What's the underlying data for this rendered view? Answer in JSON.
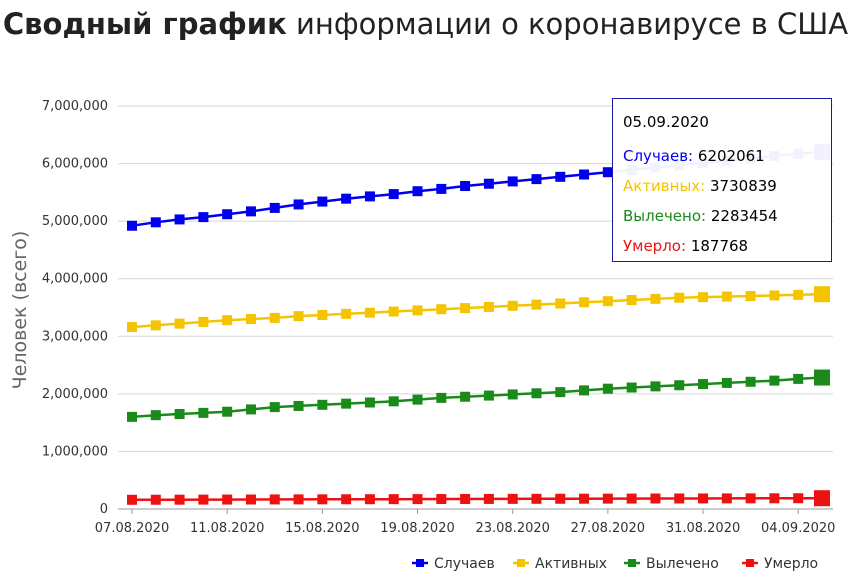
{
  "title": {
    "bold": "Сводный график",
    "rest": "информации о коронавирусе в США"
  },
  "chart_data": {
    "type": "line",
    "ylabel": "Человек (всего)",
    "ylim": [
      0,
      7000000
    ],
    "yticks": [
      "0",
      "1,000,000",
      "2,000,000",
      "3,000,000",
      "4,000,000",
      "5,000,000",
      "6,000,000",
      "7,000,000"
    ],
    "xtick_labels": [
      "07.08.2020",
      "11.08.2020",
      "15.08.2020",
      "19.08.2020",
      "23.08.2020",
      "27.08.2020",
      "31.08.2020",
      "04.09.2020"
    ],
    "x": [
      "07.08.2020",
      "08.08.2020",
      "09.08.2020",
      "10.08.2020",
      "11.08.2020",
      "12.08.2020",
      "13.08.2020",
      "14.08.2020",
      "15.08.2020",
      "16.08.2020",
      "17.08.2020",
      "18.08.2020",
      "19.08.2020",
      "20.08.2020",
      "21.08.2020",
      "22.08.2020",
      "23.08.2020",
      "24.08.2020",
      "25.08.2020",
      "26.08.2020",
      "27.08.2020",
      "28.08.2020",
      "29.08.2020",
      "30.08.2020",
      "31.08.2020",
      "01.09.2020",
      "02.09.2020",
      "03.09.2020",
      "04.09.2020",
      "05.09.2020"
    ],
    "grid": true,
    "legend_position": "bottom-right",
    "series": [
      {
        "name": "Случаев",
        "color": "#0000ee",
        "values": [
          4920000,
          4980000,
          5030000,
          5070000,
          5120000,
          5170000,
          5230000,
          5290000,
          5340000,
          5390000,
          5430000,
          5470000,
          5520000,
          5560000,
          5610000,
          5650000,
          5690000,
          5730000,
          5770000,
          5810000,
          5850000,
          5890000,
          5930000,
          5970000,
          6010000,
          6050000,
          6090000,
          6130000,
          6170000,
          6202061
        ]
      },
      {
        "name": "Активных",
        "color": "#f5c400",
        "values": [
          3160000,
          3190000,
          3220000,
          3250000,
          3280000,
          3300000,
          3320000,
          3350000,
          3370000,
          3390000,
          3410000,
          3430000,
          3450000,
          3470000,
          3490000,
          3510000,
          3530000,
          3550000,
          3570000,
          3590000,
          3610000,
          3630000,
          3650000,
          3670000,
          3680000,
          3690000,
          3700000,
          3710000,
          3720000,
          3730839
        ]
      },
      {
        "name": "Вылечено",
        "color": "#1a8a1a",
        "values": [
          1600000,
          1630000,
          1650000,
          1670000,
          1690000,
          1730000,
          1770000,
          1790000,
          1810000,
          1830000,
          1850000,
          1870000,
          1900000,
          1930000,
          1950000,
          1970000,
          1990000,
          2010000,
          2030000,
          2060000,
          2090000,
          2110000,
          2130000,
          2150000,
          2170000,
          2190000,
          2210000,
          2230000,
          2260000,
          2283454
        ]
      },
      {
        "name": "Умерло",
        "color": "#ee1111",
        "values": [
          160000,
          161000,
          162000,
          163000,
          164000,
          165000,
          166000,
          167000,
          168000,
          169000,
          170000,
          171000,
          172000,
          173000,
          174000,
          175000,
          176000,
          177000,
          178000,
          179000,
          180000,
          181000,
          182000,
          182500,
          183000,
          184000,
          185000,
          186000,
          187000,
          187768
        ]
      }
    ]
  },
  "tooltip": {
    "date": "05.09.2020",
    "rows": [
      {
        "label": "Случаев:",
        "value": "6202061",
        "color": "#0000ee"
      },
      {
        "label": "Активных:",
        "value": "3730839",
        "color": "#f5c400"
      },
      {
        "label": "Вылечено:",
        "value": "2283454",
        "color": "#1a8a1a"
      },
      {
        "label": "Умерло:",
        "value": "187768",
        "color": "#ee1111"
      }
    ]
  }
}
